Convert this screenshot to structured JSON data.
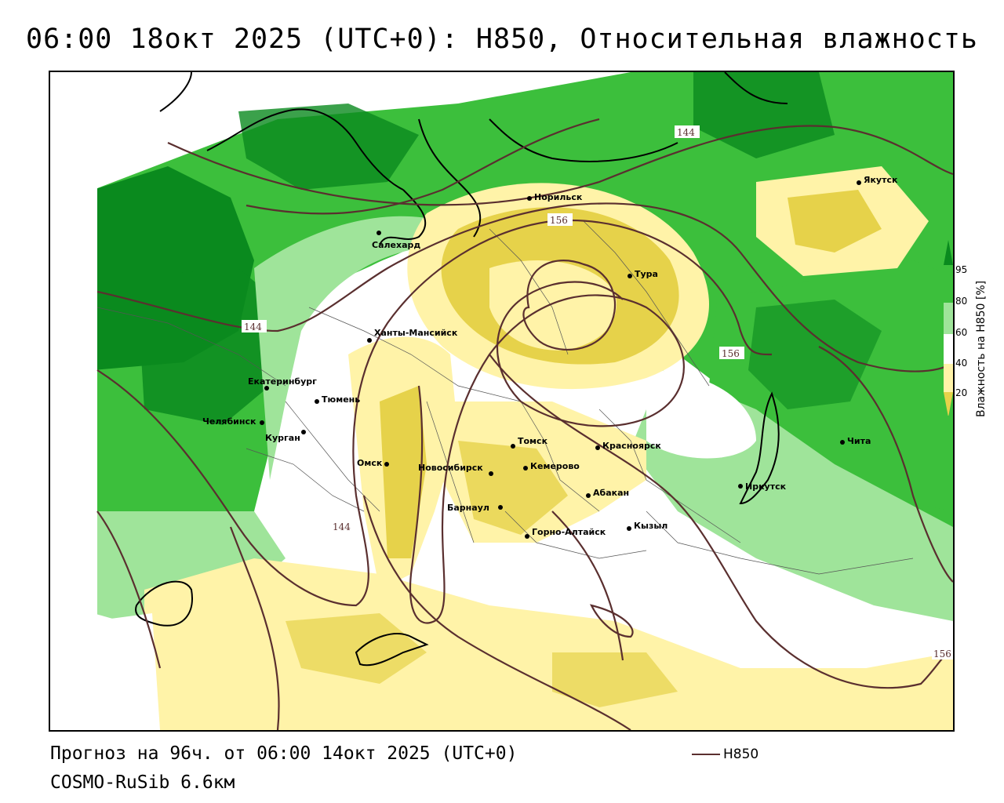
{
  "title": "06:00 18окт 2025 (UTC+0): H850, Относительная влажность",
  "footer": {
    "forecast": "Прогноз на 96ч. от 06:00 14окт 2025 (UTC+0)",
    "model": "COSMO-RuSib 6.6км"
  },
  "legend": {
    "label": "H850",
    "color": "#5a2f2f"
  },
  "colorbar": {
    "title": "Влажность на H850 [%]",
    "ticks": [
      "95",
      "80",
      "60",
      "40",
      "20"
    ],
    "colors": [
      "#0a8a1e",
      "#3cbf3c",
      "#9fe49a",
      "#ffffff",
      "#fff3a8",
      "#e6d24a"
    ]
  },
  "contour_labels": [
    "144",
    "144",
    "144",
    "156",
    "156",
    "156"
  ],
  "cities": [
    {
      "name": "Норильск"
    },
    {
      "name": "Якутск"
    },
    {
      "name": "Салехард"
    },
    {
      "name": "Тура"
    },
    {
      "name": "Ханты-Мансийск"
    },
    {
      "name": "Екатеринбург"
    },
    {
      "name": "Тюмень"
    },
    {
      "name": "Челябинск"
    },
    {
      "name": "Курган"
    },
    {
      "name": "Омск"
    },
    {
      "name": "Новосибирск"
    },
    {
      "name": "Томск"
    },
    {
      "name": "Кемерово"
    },
    {
      "name": "Красноярск"
    },
    {
      "name": "Абакан"
    },
    {
      "name": "Барнаул"
    },
    {
      "name": "Горно-Алтайск"
    },
    {
      "name": "Кызыл"
    },
    {
      "name": "Иркутск"
    },
    {
      "name": "Чита"
    }
  ]
}
